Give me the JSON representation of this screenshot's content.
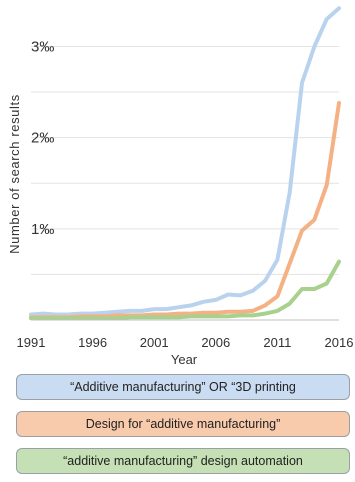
{
  "chart_data": {
    "type": "line",
    "title": "",
    "xlabel": "Year",
    "ylabel": "Number of search results",
    "xlim": [
      1991,
      2016
    ],
    "ylim": [
      0,
      3.4
    ],
    "x_ticks": [
      "1991",
      "1996",
      "2001",
      "2006",
      "2011",
      "2016"
    ],
    "y_ticks": [
      {
        "value": 1,
        "label": "1‰"
      },
      {
        "value": 2,
        "label": "2‰"
      },
      {
        "value": 3,
        "label": "3‰"
      }
    ],
    "y_gridlines": [
      0.5,
      1,
      1.5,
      2,
      2.5,
      3
    ],
    "grid": "horizontal",
    "legend_placement": "bottom",
    "series": [
      {
        "name": "“Additive manufacturing” OR “3D printing",
        "color": "#b9d3ee",
        "legend_fill": "#c9dcf2",
        "x": [
          1991,
          1992,
          1993,
          1994,
          1995,
          1996,
          1997,
          1998,
          1999,
          2000,
          2001,
          2002,
          2003,
          2004,
          2005,
          2006,
          2007,
          2008,
          2009,
          2010,
          2011,
          2012,
          2013,
          2014,
          2015,
          2016
        ],
        "y": [
          0.06,
          0.07,
          0.06,
          0.06,
          0.07,
          0.07,
          0.08,
          0.09,
          0.1,
          0.1,
          0.12,
          0.12,
          0.14,
          0.16,
          0.2,
          0.22,
          0.28,
          0.27,
          0.32,
          0.43,
          0.66,
          1.4,
          2.6,
          3.0,
          3.3,
          3.42
        ]
      },
      {
        "name": "Design for “additive manufacturing”",
        "color": "#f4b183",
        "legend_fill": "#f8cbad",
        "x": [
          1991,
          1992,
          1993,
          1994,
          1995,
          1996,
          1997,
          1998,
          1999,
          2000,
          2001,
          2002,
          2003,
          2004,
          2005,
          2006,
          2007,
          2008,
          2009,
          2010,
          2011,
          2012,
          2013,
          2014,
          2015,
          2016
        ],
        "y": [
          0.03,
          0.03,
          0.03,
          0.03,
          0.04,
          0.04,
          0.04,
          0.05,
          0.05,
          0.05,
          0.06,
          0.06,
          0.07,
          0.07,
          0.08,
          0.08,
          0.09,
          0.09,
          0.1,
          0.16,
          0.26,
          0.62,
          0.98,
          1.1,
          1.48,
          2.38
        ]
      },
      {
        "name": "“additive manufacturing” design automation",
        "color": "#a9d18e",
        "legend_fill": "#c5e0b4",
        "x": [
          1991,
          1992,
          1993,
          1994,
          1995,
          1996,
          1997,
          1998,
          1999,
          2000,
          2001,
          2002,
          2003,
          2004,
          2005,
          2006,
          2007,
          2008,
          2009,
          2010,
          2011,
          2012,
          2013,
          2014,
          2015,
          2016
        ],
        "y": [
          0.02,
          0.02,
          0.02,
          0.02,
          0.02,
          0.02,
          0.02,
          0.02,
          0.03,
          0.03,
          0.03,
          0.03,
          0.03,
          0.04,
          0.04,
          0.04,
          0.04,
          0.05,
          0.05,
          0.07,
          0.1,
          0.18,
          0.34,
          0.34,
          0.4,
          0.64
        ]
      }
    ]
  }
}
